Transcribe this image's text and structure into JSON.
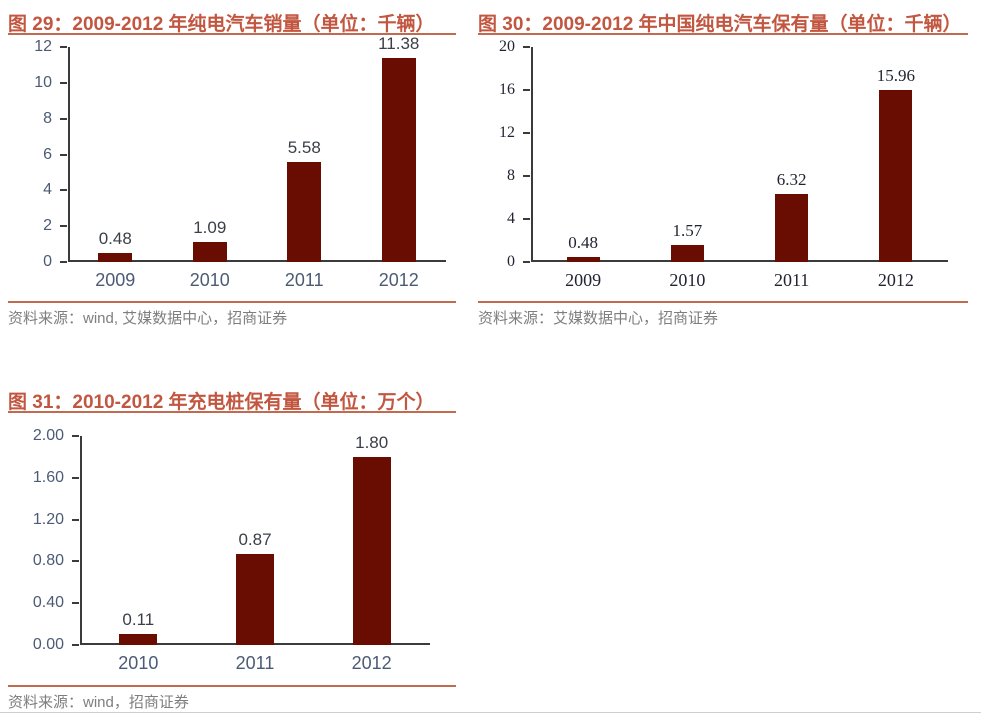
{
  "page": {
    "background": "#ffffff",
    "description": "Research report page with three bar charts"
  },
  "colors": {
    "bar": "#690D02",
    "title": "#C25741",
    "rule": "#C26A50",
    "axis": "#3B3B3B",
    "sans_label": "#4C5B75",
    "serif_label": "#232334",
    "value_sans": "#3A3F48",
    "value_serif": "#1F2230",
    "source_text": "#7E7E7E",
    "bottom_divider": "#CFCFCF"
  },
  "chart_data": [
    {
      "id": "chart29",
      "type": "bar",
      "title": "图 29：2009-2012 年纯电汽车销量（单位：千辆）",
      "categories": [
        "2009",
        "2010",
        "2011",
        "2012"
      ],
      "values": [
        0.48,
        1.09,
        5.58,
        11.38
      ],
      "value_labels": [
        "0.48",
        "1.09",
        "5.58",
        "11.38"
      ],
      "ylim": [
        0,
        12
      ],
      "ytick_labels": [
        "0",
        "2",
        "4",
        "6",
        "8",
        "10",
        "12"
      ],
      "grid": false,
      "legend": null,
      "number_font": "sans",
      "source": "资料来源：wind, 艾媒数据中心，招商证券"
    },
    {
      "id": "chart30",
      "type": "bar",
      "title": "图 30：2009-2012 年中国纯电汽车保有量（单位：千辆）",
      "categories": [
        "2009",
        "2010",
        "2011",
        "2012"
      ],
      "values": [
        0.48,
        1.57,
        6.32,
        15.96
      ],
      "value_labels": [
        "0.48",
        "1.57",
        "6.32",
        "15.96"
      ],
      "ylim": [
        0,
        20
      ],
      "ytick_labels": [
        "0",
        "4",
        "8",
        "12",
        "16",
        "20"
      ],
      "grid": false,
      "legend": null,
      "number_font": "serif",
      "source": "资料来源：艾媒数据中心，招商证券"
    },
    {
      "id": "chart31",
      "type": "bar",
      "title": "图 31：2010-2012 年充电桩保有量（单位：万个）",
      "categories": [
        "2010",
        "2011",
        "2012"
      ],
      "values": [
        0.11,
        0.87,
        1.8
      ],
      "value_labels": [
        "0.11",
        "0.87",
        "1.80"
      ],
      "ylim": [
        0,
        2
      ],
      "ytick_labels": [
        "0.00",
        "0.40",
        "0.80",
        "1.20",
        "1.60",
        "2.00"
      ],
      "grid": false,
      "legend": null,
      "number_font": "sans",
      "source": "资料来源：wind，招商证券"
    }
  ]
}
